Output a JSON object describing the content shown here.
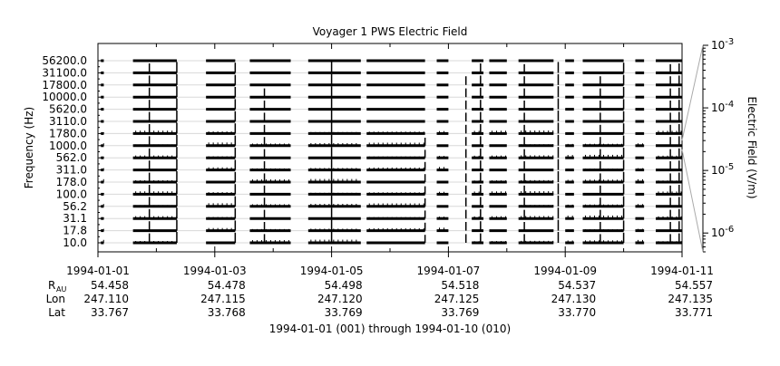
{
  "chart_data": {
    "type": "line",
    "title": "Voyager 1 PWS Electric Field",
    "ylabel": "Frequency (Hz)",
    "y2label": "Electric Field (V/m)",
    "channels_hz": [
      "10.0",
      "17.8",
      "31.1",
      "56.2",
      "100.0",
      "178.0",
      "311.0",
      "562.0",
      "1000.0",
      "1780.0",
      "3110.0",
      "5620.0",
      "10000.0",
      "17800.0",
      "31100.0",
      "56200.0"
    ],
    "y2_scale": "log",
    "y2_range": [
      5e-07,
      0.001
    ],
    "y2_ticks": [
      {
        "value": 0.001,
        "mant": "10",
        "exp": "-3"
      },
      {
        "value": 0.0001,
        "mant": "10",
        "exp": "-4"
      },
      {
        "value": 1e-05,
        "mant": "10",
        "exp": "-5"
      },
      {
        "value": 1e-06,
        "mant": "10",
        "exp": "-6"
      }
    ],
    "x_range": [
      "1994-01-01",
      "1994-01-11"
    ],
    "x_ticks": [
      "1994-01-01",
      "1994-01-03",
      "1994-01-05",
      "1994-01-07",
      "1994-01-09",
      "1994-01-11"
    ],
    "data_segments_days": [
      [
        0.05,
        0.1
      ],
      [
        0.6,
        1.35
      ],
      [
        1.85,
        2.35
      ],
      [
        2.6,
        3.3
      ],
      [
        3.6,
        4.5
      ],
      [
        4.6,
        5.6
      ],
      [
        5.8,
        6.0
      ],
      [
        6.4,
        6.6
      ],
      [
        6.7,
        7.0
      ],
      [
        7.2,
        7.8
      ],
      [
        8.0,
        8.15
      ],
      [
        8.3,
        9.0
      ],
      [
        9.2,
        9.35
      ],
      [
        9.55,
        10.0
      ]
    ],
    "bursts": [
      {
        "day": 0.88,
        "channels": 15,
        "level": 0.8
      },
      {
        "day": 1.35,
        "channels": 15,
        "level": 1.0
      },
      {
        "day": 2.35,
        "channels": 15,
        "level": 0.9
      },
      {
        "day": 2.85,
        "channels": 13,
        "level": 0.7
      },
      {
        "day": 4.0,
        "channels": 15,
        "level": 1.0
      },
      {
        "day": 5.6,
        "channels": 9,
        "level": 0.6
      },
      {
        "day": 6.3,
        "channels": 14,
        "level": 0.7
      },
      {
        "day": 6.55,
        "channels": 15,
        "level": 0.8
      },
      {
        "day": 7.3,
        "channels": 15,
        "level": 0.7
      },
      {
        "day": 7.88,
        "channels": 15,
        "level": 1.0
      },
      {
        "day": 8.6,
        "channels": 14,
        "level": 0.7
      },
      {
        "day": 9.0,
        "channels": 15,
        "level": 0.9
      },
      {
        "day": 9.8,
        "channels": 15,
        "level": 0.7
      },
      {
        "day": 9.95,
        "channels": 15,
        "level": 0.8
      }
    ]
  },
  "ephemeris": {
    "labels": {
      "r_main": "R",
      "r_sub": "AU",
      "lon": "Lon",
      "lat": "Lat"
    },
    "columns": [
      {
        "r": "54.458",
        "lon": "247.110",
        "lat": "33.767"
      },
      {
        "r": "54.478",
        "lon": "247.115",
        "lat": "33.768"
      },
      {
        "r": "54.498",
        "lon": "247.120",
        "lat": "33.769"
      },
      {
        "r": "54.518",
        "lon": "247.125",
        "lat": "33.769"
      },
      {
        "r": "54.537",
        "lon": "247.130",
        "lat": "33.770"
      },
      {
        "r": "54.557",
        "lon": "247.135",
        "lat": "33.771"
      }
    ]
  },
  "footer": "1994-01-01 (001) through 1994-01-10 (010)"
}
